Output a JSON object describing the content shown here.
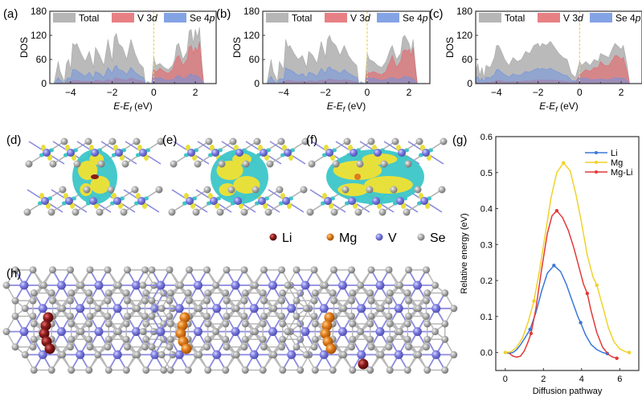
{
  "colors": {
    "total": "#a9a9a9",
    "v3d": "#e36a6f",
    "se4p": "#6f93df",
    "fermi": "#f2d24a",
    "li_atom": "#8b1a1a",
    "mg_atom": "#e07c1a",
    "v_atom": "#7b7be0",
    "se_atom": "#a8a8a8",
    "iso_yellow": "#e8e03a",
    "iso_cyan": "#3cc6c8",
    "li_line": "#3a78d8",
    "mg_line": "#f0d22a",
    "mgli_line": "#e23a3a"
  },
  "panel_labels": {
    "a": "(a)",
    "b": "(b)",
    "c": "(c)",
    "d": "(d)",
    "e": "(e)",
    "f": "(f)",
    "g": "(g)",
    "h": "(h)"
  },
  "atom_legend": [
    {
      "symbol": "Li",
      "color_key": "li_atom"
    },
    {
      "symbol": "Mg",
      "color_key": "mg_atom"
    },
    {
      "symbol": "V",
      "color_key": "v_atom"
    },
    {
      "symbol": "Se",
      "color_key": "se_atom"
    }
  ],
  "chart_data": [
    {
      "id": "a",
      "type": "area",
      "ylabel": "DOS",
      "xlabel": "E-E_f (eV)",
      "xlabel_parts": {
        "e": "E",
        "dash": "-",
        "ef": "E",
        "sub": "f",
        "unit": " (eV)"
      },
      "xlim": [
        -5,
        3
      ],
      "ylim": [
        0,
        180
      ],
      "yticks": [
        0,
        60,
        120,
        180
      ],
      "xticks": [
        -4,
        -2,
        0,
        2
      ],
      "legend": {
        "placement": "top",
        "entries": [
          "Total",
          "V 3d",
          "Se 4p"
        ]
      },
      "fermi_level": 0,
      "x": [
        -4.8,
        -4.6,
        -4.5,
        -4.3,
        -4.2,
        -4.1,
        -4.0,
        -3.9,
        -3.8,
        -3.7,
        -3.5,
        -3.3,
        -3.1,
        -2.9,
        -2.8,
        -2.6,
        -2.4,
        -2.2,
        -2.0,
        -1.9,
        -1.8,
        -1.7,
        -1.5,
        -1.3,
        -1.1,
        -0.9,
        -0.7,
        -0.5,
        -0.4,
        -0.3,
        -0.1,
        0.0,
        0.1,
        0.3,
        0.5,
        0.7,
        0.9,
        1.0,
        1.1,
        1.2,
        1.4,
        1.6,
        1.7,
        1.8,
        1.9,
        2.0,
        2.1,
        2.2,
        2.3,
        2.4
      ],
      "series": [
        {
          "name": "Total",
          "values": [
            0,
            55,
            30,
            5,
            50,
            60,
            35,
            100,
            95,
            100,
            75,
            55,
            80,
            40,
            90,
            70,
            45,
            110,
            55,
            115,
            125,
            100,
            90,
            60,
            110,
            75,
            50,
            40,
            0,
            5,
            0,
            65,
            45,
            50,
            40,
            35,
            45,
            60,
            95,
            100,
            60,
            80,
            130,
            135,
            100,
            135,
            115,
            140,
            60,
            0
          ]
        },
        {
          "name": "V 3d",
          "values": [
            0,
            2,
            2,
            0,
            3,
            4,
            3,
            8,
            8,
            8,
            6,
            5,
            6,
            4,
            8,
            7,
            5,
            10,
            6,
            12,
            14,
            12,
            10,
            8,
            14,
            10,
            8,
            5,
            0,
            0,
            0,
            35,
            28,
            38,
            30,
            25,
            35,
            50,
            65,
            70,
            45,
            60,
            90,
            95,
            75,
            90,
            80,
            105,
            45,
            0
          ]
        },
        {
          "name": "Se 4p",
          "values": [
            0,
            15,
            8,
            0,
            10,
            15,
            10,
            35,
            35,
            32,
            25,
            18,
            28,
            12,
            30,
            25,
            15,
            40,
            25,
            40,
            45,
            35,
            32,
            22,
            40,
            28,
            20,
            15,
            0,
            2,
            0,
            20,
            12,
            15,
            10,
            8,
            10,
            12,
            18,
            20,
            12,
            15,
            22,
            24,
            18,
            22,
            18,
            15,
            8,
            0
          ]
        }
      ]
    },
    {
      "id": "b",
      "type": "area",
      "ylabel": "DOS",
      "xlabel": "E-E_f (eV)",
      "xlabel_parts": {
        "e": "E",
        "dash": "-",
        "ef": "E",
        "sub": "f",
        "unit": " (eV)"
      },
      "xlim": [
        -5,
        3
      ],
      "ylim": [
        0,
        180
      ],
      "yticks": [
        0,
        60,
        120,
        180
      ],
      "xticks": [
        -4,
        -2,
        0,
        2
      ],
      "legend": {
        "placement": "top",
        "entries": [
          "Total",
          "V 3d",
          "Se 4p"
        ]
      },
      "fermi_level": 0,
      "x": [
        -4.8,
        -4.6,
        -4.5,
        -4.3,
        -4.2,
        -4.1,
        -4.0,
        -3.9,
        -3.8,
        -3.7,
        -3.5,
        -3.3,
        -3.1,
        -2.9,
        -2.8,
        -2.6,
        -2.4,
        -2.2,
        -2.0,
        -1.9,
        -1.8,
        -1.7,
        -1.5,
        -1.3,
        -1.1,
        -0.9,
        -0.7,
        -0.5,
        -0.4,
        -0.3,
        -0.1,
        0.0,
        0.1,
        0.3,
        0.5,
        0.7,
        0.9,
        1.0,
        1.1,
        1.2,
        1.4,
        1.6,
        1.7,
        1.8,
        1.9,
        2.0,
        2.1,
        2.2,
        2.3,
        2.4
      ],
      "series": [
        {
          "name": "Total",
          "values": [
            0,
            60,
            30,
            5,
            55,
            45,
            35,
            110,
            90,
            95,
            75,
            60,
            70,
            40,
            80,
            70,
            50,
            105,
            65,
            110,
            120,
            105,
            95,
            70,
            95,
            70,
            55,
            45,
            0,
            5,
            0,
            75,
            60,
            55,
            45,
            40,
            55,
            70,
            85,
            95,
            60,
            75,
            115,
            120,
            110,
            100,
            80,
            110,
            50,
            0
          ]
        },
        {
          "name": "V 3d",
          "values": [
            0,
            2,
            2,
            0,
            3,
            3,
            3,
            8,
            8,
            8,
            6,
            5,
            6,
            4,
            7,
            6,
            5,
            9,
            7,
            10,
            12,
            10,
            9,
            7,
            10,
            8,
            6,
            4,
            0,
            0,
            0,
            30,
            25,
            30,
            25,
            22,
            30,
            45,
            55,
            70,
            40,
            55,
            80,
            85,
            80,
            85,
            70,
            90,
            40,
            0
          ]
        },
        {
          "name": "Se 4p",
          "values": [
            0,
            18,
            8,
            0,
            12,
            12,
            10,
            40,
            35,
            35,
            28,
            20,
            25,
            14,
            28,
            25,
            18,
            38,
            25,
            38,
            42,
            36,
            32,
            25,
            35,
            26,
            20,
            15,
            0,
            2,
            0,
            18,
            12,
            14,
            10,
            8,
            10,
            12,
            14,
            15,
            10,
            12,
            16,
            18,
            16,
            16,
            14,
            12,
            6,
            0
          ]
        }
      ]
    },
    {
      "id": "c",
      "type": "area",
      "ylabel": "DOS",
      "xlabel": "E-E_f (eV)",
      "xlabel_parts": {
        "e": "E",
        "dash": "-",
        "ef": "E",
        "sub": "f",
        "unit": " (eV)"
      },
      "xlim": [
        -5,
        3
      ],
      "ylim": [
        0,
        180
      ],
      "yticks": [
        0,
        60,
        120,
        180
      ],
      "xticks": [
        -4,
        -2,
        0,
        2
      ],
      "legend": {
        "placement": "top",
        "entries": [
          "Total",
          "V 3d",
          "Se 4p"
        ]
      },
      "fermi_level": 0,
      "x": [
        -5.0,
        -4.9,
        -4.8,
        -4.7,
        -4.6,
        -4.5,
        -4.3,
        -4.1,
        -4.0,
        -3.9,
        -3.8,
        -3.6,
        -3.4,
        -3.2,
        -3.0,
        -2.8,
        -2.6,
        -2.4,
        -2.2,
        -2.0,
        -1.9,
        -1.8,
        -1.6,
        -1.4,
        -1.2,
        -1.0,
        -0.8,
        -0.6,
        -0.4,
        -0.2,
        0.0,
        0.1,
        0.3,
        0.5,
        0.7,
        0.9,
        1.0,
        1.2,
        1.4,
        1.6,
        1.7,
        1.8,
        2.0,
        2.1,
        2.2,
        2.3,
        2.4
      ],
      "series": [
        {
          "name": "Total",
          "values": [
            30,
            50,
            20,
            40,
            15,
            45,
            40,
            65,
            95,
            95,
            85,
            60,
            45,
            65,
            55,
            60,
            80,
            75,
            95,
            100,
            90,
            100,
            95,
            105,
            90,
            75,
            65,
            60,
            25,
            15,
            55,
            45,
            55,
            45,
            60,
            55,
            75,
            70,
            65,
            90,
            100,
            95,
            85,
            95,
            70,
            40,
            0
          ]
        },
        {
          "name": "V 3d",
          "values": [
            2,
            3,
            1,
            2,
            1,
            3,
            3,
            5,
            8,
            8,
            7,
            5,
            4,
            5,
            5,
            5,
            7,
            6,
            8,
            9,
            8,
            9,
            8,
            9,
            8,
            7,
            6,
            5,
            3,
            5,
            20,
            25,
            35,
            30,
            40,
            40,
            55,
            45,
            45,
            60,
            70,
            70,
            60,
            65,
            45,
            25,
            0
          ]
        },
        {
          "name": "Se 4p",
          "values": [
            12,
            18,
            6,
            14,
            4,
            16,
            14,
            22,
            35,
            35,
            30,
            22,
            16,
            24,
            20,
            22,
            30,
            28,
            34,
            38,
            35,
            38,
            35,
            38,
            32,
            28,
            22,
            20,
            8,
            6,
            15,
            14,
            14,
            10,
            10,
            10,
            12,
            10,
            10,
            12,
            15,
            15,
            12,
            14,
            10,
            6,
            0
          ]
        }
      ]
    },
    {
      "id": "g",
      "type": "line",
      "ylabel": "Relative energy (eV)",
      "xlabel": "Diffusion pathway",
      "xlim": [
        -0.5,
        7.0
      ],
      "ylim": [
        -0.05,
        0.6
      ],
      "yticks": [
        0.0,
        0.1,
        0.2,
        0.3,
        0.4,
        0.5,
        0.6
      ],
      "xticks": [
        0,
        2,
        4,
        6
      ],
      "legend": {
        "placement": "top-right",
        "entries": [
          "Li",
          "Mg",
          "Mg-Li"
        ]
      },
      "series": [
        {
          "name": "Li",
          "color_key": "li_line",
          "markers": {
            "x": [
              1.3,
              2.55,
              3.95,
              5.35
            ],
            "y": [
              0.064,
              0.242,
              0.083,
              -0.003
            ]
          },
          "curve": {
            "x": [
              0.0,
              0.2,
              0.4,
              0.6,
              0.8,
              1.0,
              1.3,
              1.6,
              1.9,
              2.2,
              2.55,
              2.9,
              3.2,
              3.5,
              3.8,
              3.95,
              4.2,
              4.5,
              4.8,
              5.1,
              5.35
            ],
            "y": [
              0.0,
              -0.002,
              0.0,
              0.008,
              0.022,
              0.038,
              0.064,
              0.11,
              0.17,
              0.22,
              0.242,
              0.225,
              0.19,
              0.145,
              0.1,
              0.083,
              0.05,
              0.022,
              0.008,
              0.0,
              -0.003
            ]
          }
        },
        {
          "name": "Mg",
          "color_key": "mg_line",
          "markers": {
            "x": [
              0.0,
              1.5,
              3.05,
              4.8,
              6.5
            ],
            "y": [
              0.0,
              0.143,
              0.527,
              0.187,
              0.0
            ]
          },
          "curve": {
            "x": [
              0.0,
              0.3,
              0.6,
              0.9,
              1.2,
              1.5,
              1.8,
              2.1,
              2.4,
              2.7,
              3.05,
              3.4,
              3.7,
              4.0,
              4.3,
              4.6,
              4.8,
              5.1,
              5.4,
              5.7,
              6.0,
              6.3,
              6.5
            ],
            "y": [
              0.0,
              0.002,
              0.015,
              0.04,
              0.085,
              0.143,
              0.23,
              0.33,
              0.43,
              0.5,
              0.527,
              0.505,
              0.44,
              0.36,
              0.27,
              0.21,
              0.187,
              0.13,
              0.07,
              0.03,
              0.01,
              0.002,
              0.0
            ]
          }
        },
        {
          "name": "Mg-Li",
          "color_key": "mgli_line",
          "markers": {
            "x": [
              1.35,
              2.7,
              4.3,
              5.85
            ],
            "y": [
              0.053,
              0.394,
              0.164,
              -0.016
            ]
          },
          "curve": {
            "x": [
              0.2,
              0.4,
              0.6,
              0.8,
              1.0,
              1.2,
              1.35,
              1.6,
              1.9,
              2.2,
              2.45,
              2.7,
              3.0,
              3.3,
              3.6,
              3.9,
              4.1,
              4.3,
              4.5,
              4.8,
              5.1,
              5.4,
              5.6,
              5.85
            ],
            "y": [
              -0.002,
              -0.01,
              -0.013,
              -0.01,
              0.005,
              0.03,
              0.053,
              0.12,
              0.23,
              0.33,
              0.38,
              0.394,
              0.375,
              0.34,
              0.29,
              0.23,
              0.19,
              0.164,
              0.115,
              0.055,
              0.015,
              -0.005,
              -0.012,
              -0.016
            ]
          }
        }
      ]
    }
  ]
}
